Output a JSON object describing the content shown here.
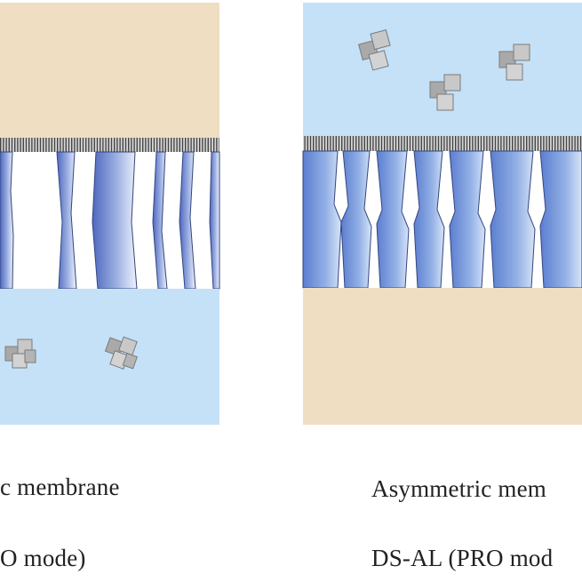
{
  "colors": {
    "feed_solution": "#F0DEC2",
    "draw_solution": "#C5E1F7",
    "pore_wall": "#5D78C9",
    "pore_wall_light": "#EEF2FB",
    "active_layer": "#5A5A5A",
    "solute_particle": "#BFBFBF"
  },
  "icons": {
    "solute": "solute-cube-cluster-icon"
  },
  "left_panel": {
    "caption_line1": "c  membrane",
    "caption_line2": "O mode)"
  },
  "right_panel": {
    "caption_line1": "Asymmetric  mem",
    "caption_line2": "DS-AL (PRO mod"
  }
}
